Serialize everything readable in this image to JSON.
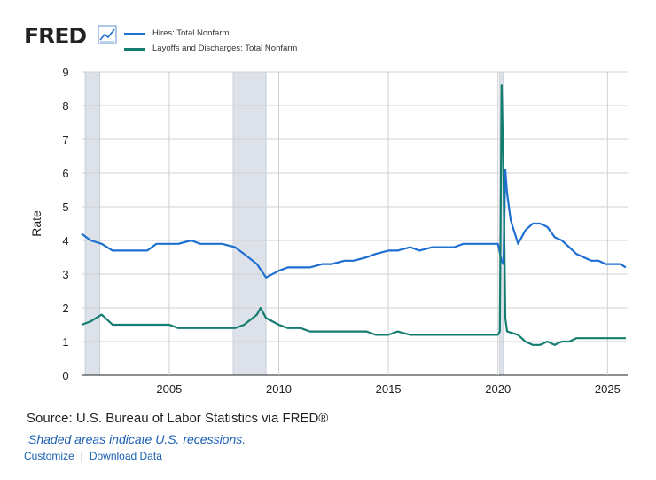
{
  "header": {
    "logo_text": "FRED"
  },
  "chart_data": {
    "type": "line",
    "ylabel": "Rate",
    "ylim": [
      0,
      9
    ],
    "xlim": [
      "2001-01",
      "2025-12"
    ],
    "y_ticks": [
      "0",
      "1",
      "2",
      "3",
      "4",
      "5",
      "6",
      "7",
      "8",
      "9"
    ],
    "x_ticks": [
      {
        "label": "2005",
        "x": "2005-01"
      },
      {
        "label": "2010",
        "x": "2010-01"
      },
      {
        "label": "2015",
        "x": "2015-01"
      },
      {
        "label": "2020",
        "x": "2020-01"
      },
      {
        "label": "2025",
        "x": "2025-01"
      }
    ],
    "grid": true,
    "legend_position": "top-left",
    "recessions": [
      [
        "2001-03",
        "2001-11"
      ],
      [
        "2007-12",
        "2009-06"
      ],
      [
        "2020-02",
        "2020-04"
      ]
    ],
    "series": [
      {
        "name": "Hires: Total Nonfarm",
        "color": "#1f6fd1",
        "points": [
          [
            "2001-01",
            4.2
          ],
          [
            "2001-06",
            4.0
          ],
          [
            "2001-12",
            3.9
          ],
          [
            "2002-06",
            3.7
          ],
          [
            "2003-01",
            3.7
          ],
          [
            "2003-06",
            3.7
          ],
          [
            "2004-01",
            3.7
          ],
          [
            "2004-06",
            3.9
          ],
          [
            "2005-01",
            3.9
          ],
          [
            "2005-06",
            3.9
          ],
          [
            "2006-01",
            4.0
          ],
          [
            "2006-06",
            3.9
          ],
          [
            "2007-01",
            3.9
          ],
          [
            "2007-06",
            3.9
          ],
          [
            "2008-01",
            3.8
          ],
          [
            "2008-06",
            3.6
          ],
          [
            "2009-01",
            3.3
          ],
          [
            "2009-06",
            2.9
          ],
          [
            "2010-01",
            3.1
          ],
          [
            "2010-06",
            3.2
          ],
          [
            "2011-01",
            3.2
          ],
          [
            "2011-06",
            3.2
          ],
          [
            "2012-01",
            3.3
          ],
          [
            "2012-06",
            3.3
          ],
          [
            "2013-01",
            3.4
          ],
          [
            "2013-06",
            3.4
          ],
          [
            "2014-01",
            3.5
          ],
          [
            "2014-06",
            3.6
          ],
          [
            "2015-01",
            3.7
          ],
          [
            "2015-06",
            3.7
          ],
          [
            "2016-01",
            3.8
          ],
          [
            "2016-06",
            3.7
          ],
          [
            "2017-01",
            3.8
          ],
          [
            "2017-06",
            3.8
          ],
          [
            "2018-01",
            3.8
          ],
          [
            "2018-06",
            3.9
          ],
          [
            "2019-01",
            3.9
          ],
          [
            "2019-06",
            3.9
          ],
          [
            "2020-01",
            3.9
          ],
          [
            "2020-03",
            3.4
          ],
          [
            "2020-04",
            3.3
          ],
          [
            "2020-05",
            6.1
          ],
          [
            "2020-06",
            5.4
          ],
          [
            "2020-08",
            4.6
          ],
          [
            "2020-12",
            3.9
          ],
          [
            "2021-04",
            4.3
          ],
          [
            "2021-08",
            4.5
          ],
          [
            "2021-12",
            4.5
          ],
          [
            "2022-04",
            4.4
          ],
          [
            "2022-08",
            4.1
          ],
          [
            "2022-12",
            4.0
          ],
          [
            "2023-04",
            3.8
          ],
          [
            "2023-08",
            3.6
          ],
          [
            "2023-12",
            3.5
          ],
          [
            "2024-04",
            3.4
          ],
          [
            "2024-08",
            3.4
          ],
          [
            "2024-12",
            3.3
          ],
          [
            "2025-04",
            3.3
          ],
          [
            "2025-08",
            3.3
          ],
          [
            "2025-11",
            3.2
          ]
        ]
      },
      {
        "name": "Layoffs and Discharges: Total Nonfarm",
        "color": "#137d6f",
        "points": [
          [
            "2001-01",
            1.5
          ],
          [
            "2001-06",
            1.6
          ],
          [
            "2001-12",
            1.8
          ],
          [
            "2002-06",
            1.5
          ],
          [
            "2003-01",
            1.5
          ],
          [
            "2003-06",
            1.5
          ],
          [
            "2004-01",
            1.5
          ],
          [
            "2004-06",
            1.5
          ],
          [
            "2005-01",
            1.5
          ],
          [
            "2005-06",
            1.4
          ],
          [
            "2006-01",
            1.4
          ],
          [
            "2006-06",
            1.4
          ],
          [
            "2007-01",
            1.4
          ],
          [
            "2007-06",
            1.4
          ],
          [
            "2008-01",
            1.4
          ],
          [
            "2008-06",
            1.5
          ],
          [
            "2009-01",
            1.8
          ],
          [
            "2009-03",
            2.0
          ],
          [
            "2009-06",
            1.7
          ],
          [
            "2010-01",
            1.5
          ],
          [
            "2010-06",
            1.4
          ],
          [
            "2011-01",
            1.4
          ],
          [
            "2011-06",
            1.3
          ],
          [
            "2012-01",
            1.3
          ],
          [
            "2012-06",
            1.3
          ],
          [
            "2013-01",
            1.3
          ],
          [
            "2013-06",
            1.3
          ],
          [
            "2014-01",
            1.3
          ],
          [
            "2014-06",
            1.2
          ],
          [
            "2015-01",
            1.2
          ],
          [
            "2015-06",
            1.3
          ],
          [
            "2016-01",
            1.2
          ],
          [
            "2016-06",
            1.2
          ],
          [
            "2017-01",
            1.2
          ],
          [
            "2017-06",
            1.2
          ],
          [
            "2018-01",
            1.2
          ],
          [
            "2018-06",
            1.2
          ],
          [
            "2019-01",
            1.2
          ],
          [
            "2019-06",
            1.2
          ],
          [
            "2020-01",
            1.2
          ],
          [
            "2020-02",
            1.3
          ],
          [
            "2020-03",
            8.6
          ],
          [
            "2020-04",
            6.1
          ],
          [
            "2020-05",
            1.7
          ],
          [
            "2020-06",
            1.3
          ],
          [
            "2020-12",
            1.2
          ],
          [
            "2021-04",
            1.0
          ],
          [
            "2021-08",
            0.9
          ],
          [
            "2021-12",
            0.9
          ],
          [
            "2022-04",
            1.0
          ],
          [
            "2022-08",
            0.9
          ],
          [
            "2022-12",
            1.0
          ],
          [
            "2023-04",
            1.0
          ],
          [
            "2023-08",
            1.1
          ],
          [
            "2023-12",
            1.1
          ],
          [
            "2024-04",
            1.1
          ],
          [
            "2024-08",
            1.1
          ],
          [
            "2024-12",
            1.1
          ],
          [
            "2025-04",
            1.1
          ],
          [
            "2025-08",
            1.1
          ],
          [
            "2025-11",
            1.1
          ]
        ]
      }
    ]
  },
  "footer": {
    "source": "Source: U.S. Bureau of Labor Statistics via FRED®",
    "recession_note": "Shaded areas indicate U.S. recessions.",
    "customize_label": "Customize",
    "separator": "|",
    "download_label": "Download Data"
  }
}
